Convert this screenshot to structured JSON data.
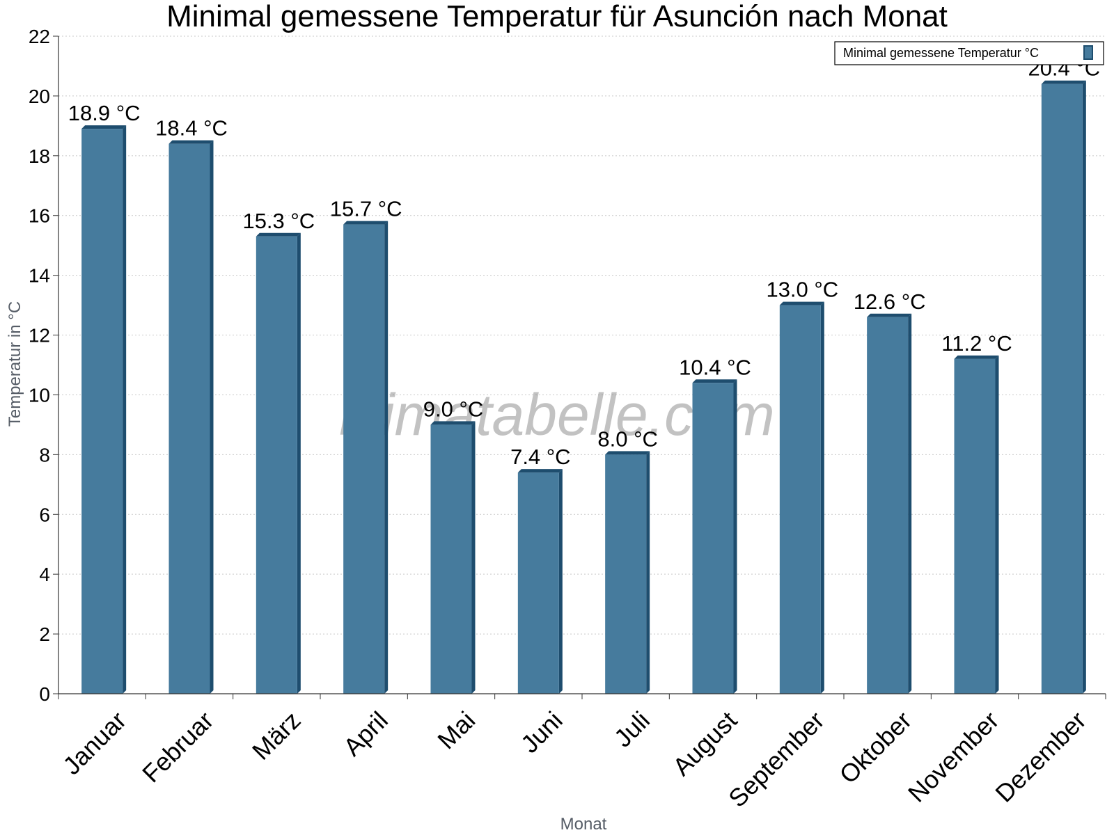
{
  "chart_data": {
    "type": "bar",
    "title": "Minimal gemessene Temperatur für Asunción nach Monat",
    "xlabel": "Monat",
    "ylabel": "Temperatur in °C",
    "categories": [
      "Januar",
      "Februar",
      "März",
      "April",
      "Mai",
      "Juni",
      "Juli",
      "August",
      "September",
      "Oktober",
      "November",
      "Dezember"
    ],
    "series": [
      {
        "name": "Minimal gemessene Temperatur °C",
        "values": [
          18.9,
          18.4,
          15.3,
          15.7,
          9.0,
          7.4,
          8.0,
          10.4,
          13.0,
          12.6,
          11.2,
          20.4
        ],
        "labels": [
          "18.9 °C",
          "18.4 °C",
          "15.3 °C",
          "15.7 °C",
          "9.0 °C",
          "7.4 °C",
          "8.0 °C",
          "10.4 °C",
          "13.0 °C",
          "12.6 °C",
          "11.2 °C",
          "20.4 °C"
        ]
      }
    ],
    "ylim": [
      0,
      22
    ],
    "yticks": [
      0,
      2,
      4,
      6,
      8,
      10,
      12,
      14,
      16,
      18,
      20,
      22
    ],
    "grid": true,
    "legend_position": "top-right",
    "colors": {
      "bar": "#467b9d",
      "bar_dark": "#1e4d6e",
      "grid": "#c8c8c8",
      "axis": "#333333"
    }
  },
  "watermark": "klimatabelle.com"
}
